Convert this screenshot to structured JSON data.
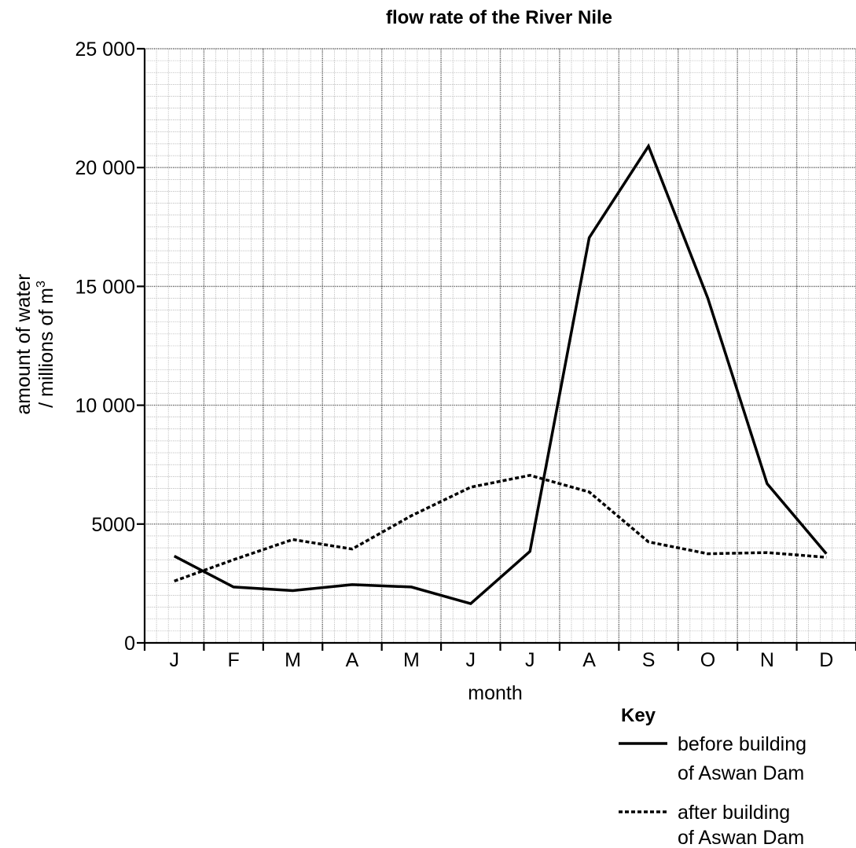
{
  "chart_data": {
    "type": "line",
    "title": "flow rate of the River Nile",
    "xlabel": "month",
    "ylabel": {
      "line1": "amount of water",
      "line2": "/ millions of m",
      "sup": "3"
    },
    "categories": [
      "J",
      "F",
      "M",
      "A",
      "M",
      "J",
      "J",
      "A",
      "S",
      "O",
      "N",
      "D"
    ],
    "y_ticks": [
      {
        "value": 0,
        "label": "0"
      },
      {
        "value": 5000,
        "label": "5000"
      },
      {
        "value": 10000,
        "label": "10 000"
      },
      {
        "value": 15000,
        "label": "15 000"
      },
      {
        "value": 20000,
        "label": "20 000"
      },
      {
        "value": 25000,
        "label": "25 000"
      }
    ],
    "ylim": [
      0,
      25000
    ],
    "grid": true,
    "legend": {
      "title": "Key",
      "placement": "bottom-right"
    },
    "series": [
      {
        "name_line1": "before building",
        "name_line2": "of Aswan Dam",
        "style": "solid",
        "color": "#000000",
        "values": [
          3650,
          2350,
          2200,
          2450,
          2350,
          1650,
          3850,
          17050,
          20900,
          14500,
          6700,
          3750
        ]
      },
      {
        "name_line1": "after building",
        "name_line2": "of Aswan Dam",
        "style": "dotted",
        "color": "#000000",
        "values": [
          2600,
          3500,
          4350,
          3950,
          5350,
          6550,
          7050,
          6350,
          4250,
          3750,
          3800,
          3600
        ]
      }
    ]
  }
}
